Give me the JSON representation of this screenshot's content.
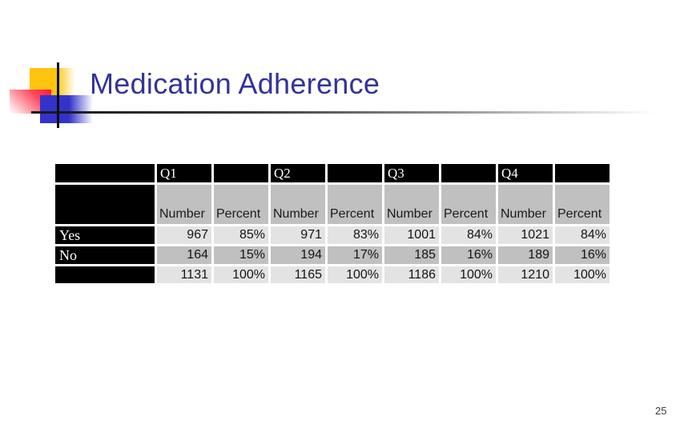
{
  "slide": {
    "title": "Medication Adherence",
    "page_number": "25"
  },
  "table": {
    "quarters": [
      "Q1",
      "Q2",
      "Q3",
      "Q4"
    ],
    "subheaders": [
      "Number",
      "Percent"
    ],
    "rows": [
      {
        "label": "Yes",
        "values": [
          "967",
          "85%",
          "971",
          "83%",
          "1001",
          "84%",
          "1021",
          "84%"
        ]
      },
      {
        "label": "No",
        "values": [
          "164",
          "15%",
          "194",
          "17%",
          "185",
          "16%",
          "189",
          "16%"
        ]
      },
      {
        "label": "",
        "values": [
          "1131",
          "100%",
          "1165",
          "100%",
          "1186",
          "100%",
          "1210",
          "100%"
        ]
      }
    ]
  },
  "colors": {
    "title_text": "#333399",
    "table_header_bg": "#000000",
    "table_header_text": "#ffffff",
    "row_medium_gray": "#c0c0c0",
    "row_light_gray": "#e3e3e3",
    "logo_yellow": "#ffc40d",
    "logo_red": "#ff1433",
    "logo_blue": "#3333cc",
    "rule_dark": "#161616"
  }
}
